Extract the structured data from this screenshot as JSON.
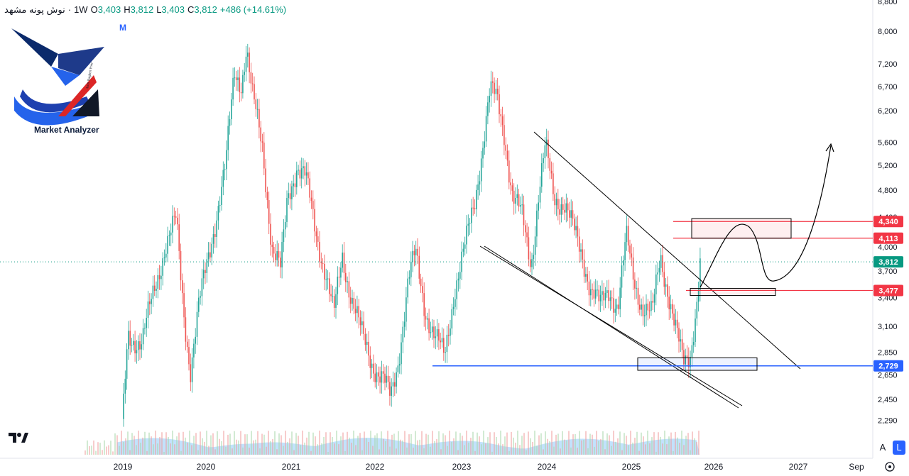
{
  "header": {
    "symbol": "نوش پونه مشهد",
    "interval": "1W",
    "open_label": "O",
    "open": "3,403",
    "high_label": "H",
    "high": "3,812",
    "low_label": "L",
    "low": "3,403",
    "close_label": "C",
    "close": "3,812",
    "change": "+486 (+14.61%)",
    "badge": "M"
  },
  "logo": {
    "text": "Market Analyzer",
    "watermark": "Amir Bagheri Pour"
  },
  "controls": {
    "auto_label": "A",
    "log_label": "L"
  },
  "chart_data": {
    "type": "candlestick",
    "log_scale": true,
    "price_ticks": [
      "8,800",
      "8,000",
      "7,200",
      "6,700",
      "6,200",
      "5,600",
      "5,200",
      "4,800",
      "4,400",
      "4,000",
      "3,700",
      "3,400",
      "3,100",
      "2,850",
      "2,650",
      "2,450",
      "2,290"
    ],
    "time_ticks": [
      "2019",
      "2020",
      "2021",
      "2022",
      "2023",
      "2024",
      "2025",
      "2026",
      "2027",
      "Sep"
    ],
    "price_levels": [
      {
        "label": "4,340",
        "value": 4340,
        "color": "#f23645"
      },
      {
        "label": "4,113",
        "value": 4113,
        "color": "#f23645"
      },
      {
        "label": "3,812",
        "value": 3812,
        "color": "#089981"
      },
      {
        "label": "3,477",
        "value": 3477,
        "color": "#f23645"
      },
      {
        "label": "2,729",
        "value": 2729,
        "color": "#2962ff"
      }
    ],
    "colors": {
      "up": "#26a69a",
      "down": "#ef5350",
      "volume": "#90caf9",
      "line": "#000000",
      "support": "#2962ff"
    },
    "grid": false,
    "legend": "top-left"
  }
}
